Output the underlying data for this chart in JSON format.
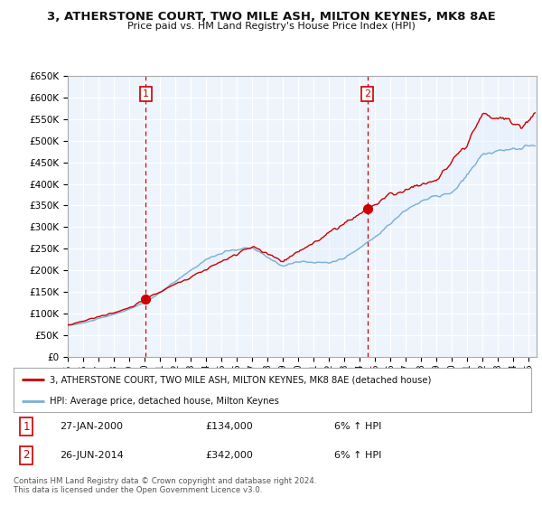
{
  "title": "3, ATHERSTONE COURT, TWO MILE ASH, MILTON KEYNES, MK8 8AE",
  "subtitle": "Price paid vs. HM Land Registry's House Price Index (HPI)",
  "ylim": [
    0,
    650000
  ],
  "yticks": [
    0,
    50000,
    100000,
    150000,
    200000,
    250000,
    300000,
    350000,
    400000,
    450000,
    500000,
    550000,
    600000,
    650000
  ],
  "ytick_labels": [
    "£0",
    "£50K",
    "£100K",
    "£150K",
    "£200K",
    "£250K",
    "£300K",
    "£350K",
    "£400K",
    "£450K",
    "£500K",
    "£550K",
    "£600K",
    "£650K"
  ],
  "xlim_start": 1995.0,
  "xlim_end": 2025.5,
  "vline1_x": 2000.07,
  "vline2_x": 2014.49,
  "red_line_color": "#cc0000",
  "blue_line_color": "#7ab0d4",
  "fill_color": "#ddeeff",
  "vline_color": "#cc0000",
  "grid_color": "#cccccc",
  "bg_color": "#eef4fb",
  "legend_label_red": "3, ATHERSTONE COURT, TWO MILE ASH, MILTON KEYNES, MK8 8AE (detached house)",
  "legend_label_blue": "HPI: Average price, detached house, Milton Keynes",
  "table_row1": [
    "1",
    "27-JAN-2000",
    "£134,000",
    "6% ↑ HPI"
  ],
  "table_row2": [
    "2",
    "26-JUN-2014",
    "£342,000",
    "6% ↑ HPI"
  ],
  "footer": "Contains HM Land Registry data © Crown copyright and database right 2024.\nThis data is licensed under the Open Government Licence v3.0.",
  "sale1_x": 2000.07,
  "sale1_y": 134000,
  "sale2_x": 2014.49,
  "sale2_y": 342000
}
